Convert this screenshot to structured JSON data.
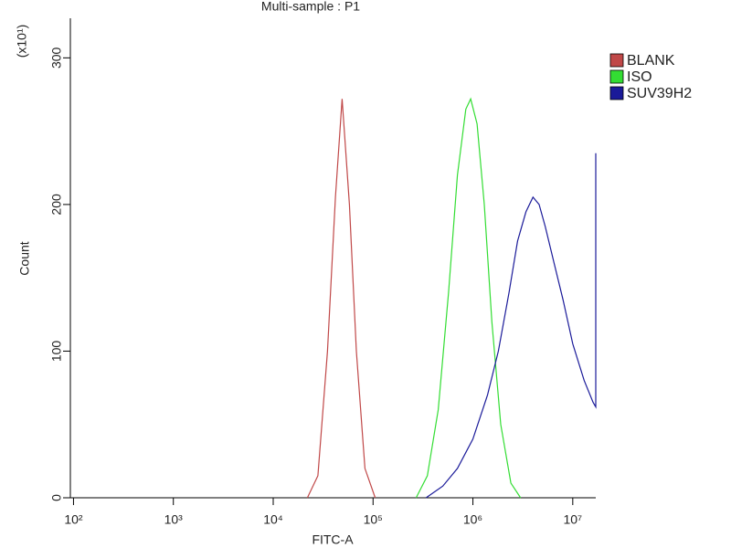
{
  "chart_data": {
    "type": "line",
    "title": "Multi-sample : P1",
    "xlabel": "FITC-A",
    "ylabel": "Count",
    "yunit": "(x10¹)",
    "xscale": "log",
    "xlim": [
      93,
      17000000
    ],
    "ylim": [
      0,
      327
    ],
    "xticks": [
      {
        "value": 100,
        "label": "10²"
      },
      {
        "value": 1000,
        "label": "10³"
      },
      {
        "value": 10000,
        "label": "10⁴"
      },
      {
        "value": 100000,
        "label": "10⁵"
      },
      {
        "value": 1000000,
        "label": "10⁶"
      },
      {
        "value": 10000000,
        "label": "10⁷"
      }
    ],
    "yticks": [
      0,
      100,
      200,
      300
    ],
    "grid": false,
    "legend": "right",
    "series": [
      {
        "name": "BLANK",
        "color": "#c04848",
        "x": [
          22000,
          28000,
          35000,
          42000,
          49000,
          58000,
          68000,
          83000,
          105000
        ],
        "values": [
          0,
          15,
          100,
          205,
          272,
          200,
          100,
          20,
          0
        ]
      },
      {
        "name": "ISO",
        "color": "#33dd33",
        "x": [
          270000,
          350000,
          450000,
          570000,
          700000,
          850000,
          950000,
          1100000,
          1300000,
          1550000,
          1900000,
          2400000,
          3000000
        ],
        "values": [
          0,
          15,
          60,
          140,
          220,
          265,
          272,
          255,
          200,
          120,
          50,
          10,
          0
        ]
      },
      {
        "name": "SUV39H2",
        "color": "#1a1a99",
        "x": [
          340000,
          500000,
          700000,
          1000000,
          1400000,
          1800000,
          2300000,
          2800000,
          3400000,
          4000000,
          4600000,
          5300000,
          6500000,
          8000000,
          10000000,
          13000000,
          16000000,
          17000000,
          17000000
        ],
        "values": [
          0,
          8,
          20,
          40,
          70,
          100,
          140,
          175,
          195,
          205,
          200,
          185,
          160,
          135,
          105,
          80,
          65,
          62,
          235
        ]
      }
    ]
  }
}
